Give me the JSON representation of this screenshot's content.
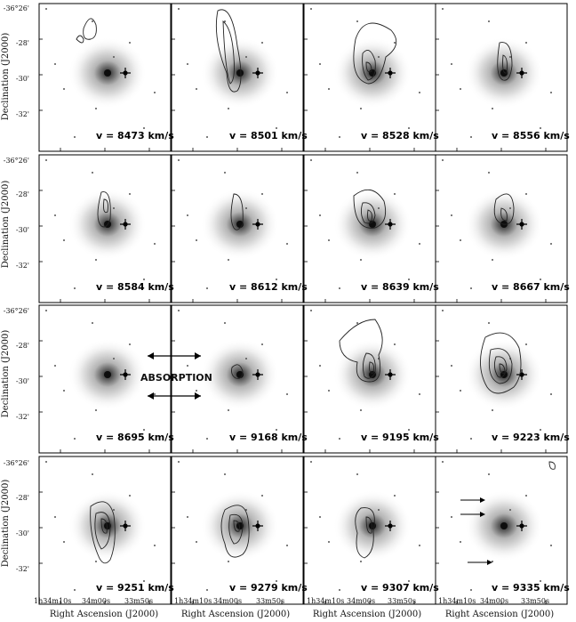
{
  "figure": {
    "ylabel": "Declination (J2000)",
    "xlabel": "Right Ascension (J2000)",
    "yticks": [
      "-36°26'",
      "-28'",
      "-30'",
      "-32'"
    ],
    "xticks": [
      "1h34m10s",
      "34m00s",
      "33m50s",
      "33m40s"
    ],
    "absorption_label": "ABSORPTION",
    "panels": [
      {
        "velocity": "v = 8473 km/s"
      },
      {
        "velocity": "v = 8501 km/s"
      },
      {
        "velocity": "v = 8528 km/s"
      },
      {
        "velocity": "v = 8556 km/s"
      },
      {
        "velocity": "v = 8584 km/s"
      },
      {
        "velocity": "v = 8612 km/s"
      },
      {
        "velocity": "v = 8639 km/s"
      },
      {
        "velocity": "v = 8667 km/s"
      },
      {
        "velocity": "v = 8695 km/s"
      },
      {
        "velocity": "v = 9168 km/s"
      },
      {
        "velocity": "v = 9195 km/s"
      },
      {
        "velocity": "v = 9223 km/s"
      },
      {
        "velocity": "v = 9251 km/s"
      },
      {
        "velocity": "v = 9279 km/s"
      },
      {
        "velocity": "v = 9307 km/s"
      },
      {
        "velocity": "v = 9335 km/s"
      }
    ]
  }
}
